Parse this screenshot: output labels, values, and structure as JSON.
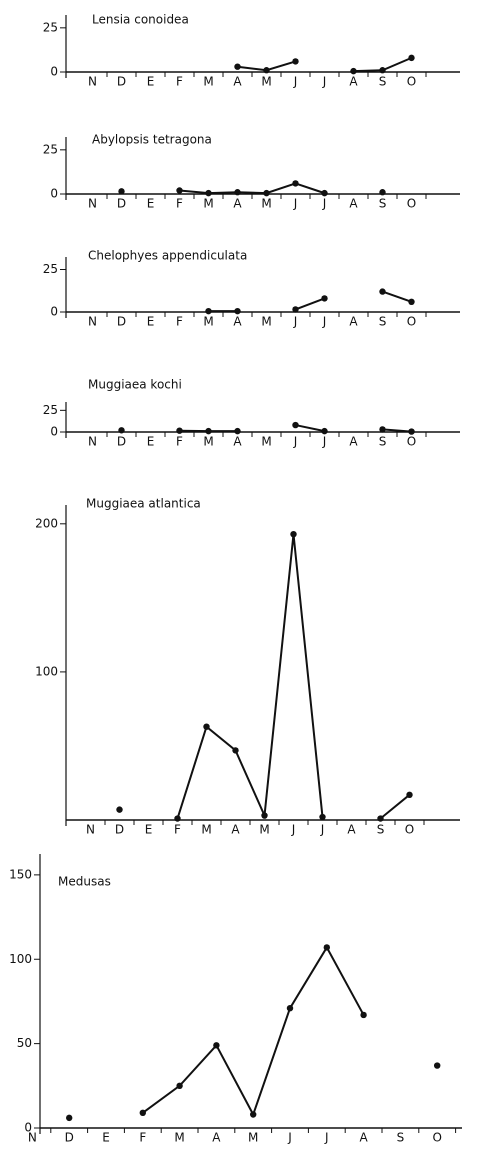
{
  "chart_data": [
    {
      "type": "line",
      "title": "Lensia conoidea",
      "categories": [
        "N",
        "D",
        "E",
        "F",
        "M",
        "A",
        "M",
        "J",
        "J",
        "A",
        "S",
        "O"
      ],
      "series": [
        {
          "color": "#111111",
          "values": [
            null,
            null,
            null,
            null,
            null,
            3,
            1,
            6,
            null,
            0.5,
            1,
            8
          ]
        }
      ],
      "ylim": [
        0,
        30
      ],
      "yticks": [
        0,
        25
      ]
    },
    {
      "type": "line",
      "title": "Abylopsis tetragona",
      "categories": [
        "N",
        "D",
        "E",
        "F",
        "M",
        "A",
        "M",
        "J",
        "J",
        "A",
        "S",
        "O"
      ],
      "series": [
        {
          "color": "#111111",
          "values": [
            null,
            1.5,
            null,
            2,
            0.5,
            1,
            0.5,
            6,
            0.5,
            null,
            1,
            null
          ]
        }
      ],
      "ylim": [
        0,
        30
      ],
      "yticks": [
        0,
        25
      ]
    },
    {
      "type": "line",
      "title": "Chelophyes appendiculata",
      "categories": [
        "N",
        "D",
        "E",
        "F",
        "M",
        "A",
        "M",
        "J",
        "J",
        "A",
        "S",
        "O"
      ],
      "series": [
        {
          "color": "#111111",
          "values": [
            null,
            null,
            null,
            null,
            0.5,
            0.5,
            null,
            1.5,
            8,
            null,
            12,
            6
          ]
        }
      ],
      "ylim": [
        0,
        30
      ],
      "yticks": [
        0,
        25
      ]
    },
    {
      "type": "line",
      "title": "Muggiaea kochi",
      "categories": [
        "N",
        "D",
        "E",
        "F",
        "M",
        "A",
        "M",
        "J",
        "J",
        "A",
        "S",
        "O"
      ],
      "series": [
        {
          "color": "#111111",
          "values": [
            null,
            2,
            null,
            1.5,
            1,
            1,
            null,
            8,
            1,
            null,
            3,
            0.5
          ]
        }
      ],
      "ylim": [
        0,
        30
      ],
      "yticks": [
        0,
        25
      ]
    },
    {
      "type": "line",
      "title": "Muggiaea atlantica",
      "categories": [
        "N",
        "D",
        "E",
        "F",
        "M",
        "A",
        "M",
        "J",
        "J",
        "A",
        "S",
        "O"
      ],
      "series": [
        {
          "color": "#111111",
          "values": [
            null,
            7,
            null,
            1,
            63,
            47,
            3,
            193,
            2,
            null,
            1,
            17
          ]
        }
      ],
      "ylim": [
        0,
        210
      ],
      "yticks": [
        100,
        200
      ]
    },
    {
      "type": "line",
      "title": "Medusas",
      "categories": [
        "N",
        "D",
        "E",
        "F",
        "M",
        "A",
        "M",
        "J",
        "J",
        "A",
        "S",
        "O"
      ],
      "series": [
        {
          "color": "#111111",
          "values": [
            null,
            6,
            null,
            9,
            25,
            49,
            8,
            71,
            107,
            67,
            null,
            37
          ]
        }
      ],
      "ylim": [
        0,
        160
      ],
      "yticks": [
        0,
        50,
        100,
        150
      ]
    }
  ]
}
